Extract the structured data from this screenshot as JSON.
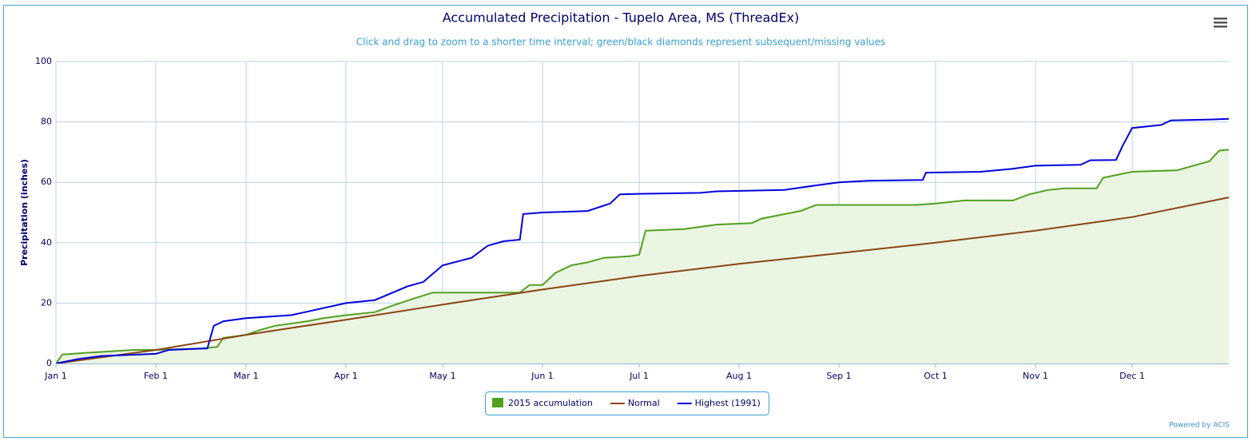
{
  "chart_data": {
    "type": "line",
    "title": "Accumulated Precipitation - Tupelo Area, MS (ThreadEx)",
    "subtitle": "Click and drag to zoom to a shorter time interval; green/black diamonds represent subsequent/missing values",
    "y_label": "Precipitation (inches)",
    "credit": "Powered by ACIS",
    "xlim": [
      "Jan 1",
      "Dec 31"
    ],
    "xticks": [
      "Jan 1",
      "Feb 1",
      "Mar 1",
      "Apr 1",
      "May 1",
      "Jun 1",
      "Jul 1",
      "Aug 1",
      "Sep 1",
      "Oct 1",
      "Nov 1",
      "Dec 1"
    ],
    "ylim": [
      0,
      100
    ],
    "yticks": [
      0,
      20,
      40,
      60,
      80,
      100
    ],
    "grid": true,
    "legend": "bottom",
    "series": [
      {
        "name": "2015 accumulation",
        "color": "#52a01f",
        "fill": "#eaf5e2",
        "area": true,
        "x": [
          "Jan 1",
          "Jan 3",
          "Jan 10",
          "Jan 25",
          "Feb 1",
          "Feb 15",
          "Feb 20",
          "Feb 22",
          "Mar 1",
          "Mar 5",
          "Mar 10",
          "Mar 20",
          "Mar 25",
          "Apr 1",
          "Apr 10",
          "Apr 15",
          "Apr 22",
          "Apr 28",
          "May 25",
          "May 28",
          "Jun 1",
          "Jun 5",
          "Jun 10",
          "Jun 15",
          "Jun 20",
          "Jun 28",
          "Jul 1",
          "Jul 3",
          "Jul 15",
          "Jul 25",
          "Aug 5",
          "Aug 8",
          "Aug 20",
          "Aug 25",
          "Sep 25",
          "Oct 1",
          "Oct 10",
          "Oct 25",
          "Oct 30",
          "Nov 5",
          "Nov 10",
          "Nov 20",
          "Nov 22",
          "Dec 1",
          "Dec 15",
          "Dec 20",
          "Dec 25",
          "Dec 28",
          "Dec 31"
        ],
        "values": [
          0,
          3,
          3.5,
          4.5,
          4.5,
          5,
          5.5,
          8.5,
          9.5,
          11,
          12.5,
          14,
          15,
          16,
          17,
          19,
          21.5,
          23.5,
          23.5,
          26,
          26,
          30,
          32.5,
          33.5,
          35,
          35.5,
          36,
          44,
          44.5,
          46,
          46.5,
          48,
          50.5,
          52.5,
          52.5,
          53,
          54,
          54,
          56,
          57.5,
          58,
          58,
          61.5,
          63.5,
          64,
          65.5,
          67,
          70.5,
          70.8
        ]
      },
      {
        "name": "Normal",
        "color": "#8b4513",
        "x": [
          "Jan 1",
          "Feb 1",
          "Mar 1",
          "Apr 1",
          "May 1",
          "Jun 1",
          "Jul 1",
          "Aug 1",
          "Sep 1",
          "Oct 1",
          "Nov 1",
          "Dec 1",
          "Dec 31"
        ],
        "values": [
          0,
          4.5,
          9.5,
          14.5,
          19.5,
          24.5,
          29,
          33,
          36.5,
          40,
          44,
          48.5,
          55
        ]
      },
      {
        "name": "Highest (1991)",
        "color": "#0000dd",
        "x": [
          "Jan 1",
          "Jan 8",
          "Jan 15",
          "Feb 1",
          "Feb 5",
          "Feb 17",
          "Feb 19",
          "Feb 22",
          "Mar 1",
          "Mar 15",
          "Apr 1",
          "Apr 10",
          "Apr 20",
          "Apr 25",
          "May 1",
          "May 10",
          "May 15",
          "May 20",
          "May 25",
          "May 26",
          "Jun 1",
          "Jun 15",
          "Jun 22",
          "Jun 25",
          "Jul 1",
          "Jul 20",
          "Jul 25",
          "Aug 15",
          "Aug 25",
          "Sep 1",
          "Sep 10",
          "Sep 27",
          "Sep 28",
          "Oct 15",
          "Oct 25",
          "Nov 1",
          "Nov 15",
          "Nov 18",
          "Nov 26",
          "Nov 28",
          "Dec 1",
          "Dec 10",
          "Dec 13",
          "Dec 25",
          "Dec 31"
        ],
        "values": [
          0,
          1.5,
          2.5,
          3.2,
          4.5,
          5,
          12.5,
          14,
          15,
          16,
          20,
          21,
          25.5,
          27,
          32.5,
          35,
          39,
          40.5,
          41,
          49.5,
          50,
          50.5,
          53,
          56,
          56.2,
          56.5,
          57,
          57.5,
          59,
          60,
          60.5,
          60.8,
          63.2,
          63.5,
          64.5,
          65.5,
          65.8,
          67.3,
          67.4,
          72,
          78,
          79,
          80.5,
          80.8,
          81
        ]
      }
    ]
  }
}
